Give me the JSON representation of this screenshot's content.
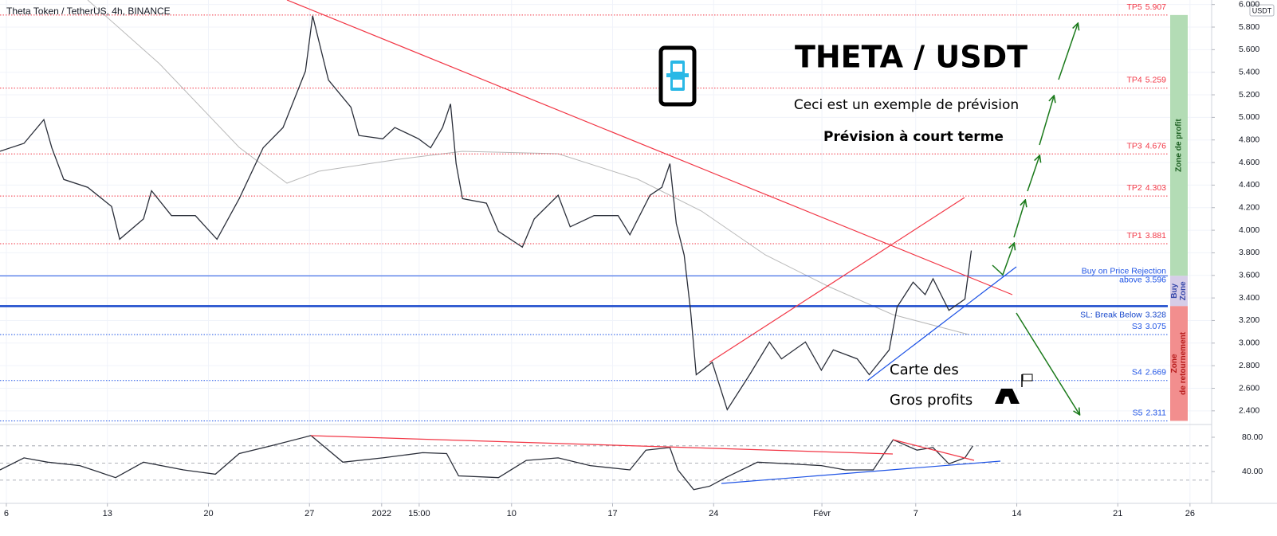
{
  "chart_data": {
    "type": "line",
    "title": "Theta Token / TetherUS, 4h, BINANCE",
    "y_axis_label": "USDT",
    "color": "#2a2e39",
    "x": [
      -0.44,
      1.22,
      2.6,
      3.15,
      3.98,
      5.64,
      7.29,
      7.85,
      9.5,
      10.06,
      11.44,
      13.09,
      14.59,
      16.13,
      17.79,
      19.17,
      20.72,
      21.22,
      22.32,
      23.87,
      24.42,
      26.08,
      26.91,
      28.56,
      29.39,
      30.22,
      30.77,
      31.16,
      31.6,
      33.26,
      34.09,
      35.75,
      36.57,
      38.23,
      39.06,
      40.72,
      42.38,
      43.2,
      44.59,
      45.41,
      45.97,
      46.41,
      46.96,
      47.4,
      47.79,
      48.9,
      49.94,
      51.49,
      52.87,
      53.7,
      55.36,
      56.46,
      57.29,
      58.95,
      59.78,
      61.16,
      61.71,
      62.82,
      63.65,
      64.2,
      65.3,
      66.41,
      66.85
    ],
    "values": [
      4.7,
      4.77,
      4.98,
      4.73,
      4.45,
      4.38,
      4.21,
      3.92,
      4.1,
      4.35,
      4.13,
      4.13,
      3.92,
      4.28,
      4.73,
      4.91,
      5.41,
      5.9,
      5.33,
      5.09,
      4.84,
      4.81,
      4.91,
      4.81,
      4.73,
      4.91,
      5.12,
      4.59,
      4.28,
      4.24,
      3.99,
      3.85,
      4.1,
      4.31,
      4.03,
      4.13,
      4.13,
      3.96,
      4.31,
      4.38,
      4.59,
      4.06,
      3.78,
      3.29,
      2.72,
      2.83,
      2.41,
      2.72,
      3.01,
      2.86,
      3.01,
      2.76,
      2.94,
      2.86,
      2.72,
      2.94,
      3.32,
      3.54,
      3.43,
      3.57,
      3.29,
      3.39,
      3.82
    ],
    "xlim": [
      -0.44,
      83.5
    ],
    "xticks": [
      {
        "value": 0,
        "label": "6"
      },
      {
        "value": 7,
        "label": "13"
      },
      {
        "value": 14,
        "label": "20"
      },
      {
        "value": 21,
        "label": "27"
      },
      {
        "value": 26,
        "label": "2022"
      },
      {
        "value": 28.6,
        "label": "15:00"
      },
      {
        "value": 35,
        "label": "10"
      },
      {
        "value": 42,
        "label": "17"
      },
      {
        "value": 49,
        "label": "24"
      },
      {
        "value": 56.5,
        "label": "Févr"
      },
      {
        "value": 63,
        "label": "7"
      },
      {
        "value": 70,
        "label": "14"
      },
      {
        "value": 77,
        "label": "21"
      },
      {
        "value": 82,
        "label": "26"
      }
    ],
    "ylim": [
      2.3,
      6.04
    ],
    "yticks": [
      {
        "value": 2.4,
        "label": "2.400"
      },
      {
        "value": 2.6,
        "label": "2.600"
      },
      {
        "value": 2.8,
        "label": "2.800"
      },
      {
        "value": 3.0,
        "label": "3.000"
      },
      {
        "value": 3.2,
        "label": "3.200"
      },
      {
        "value": 3.4,
        "label": "3.400"
      },
      {
        "value": 3.6,
        "label": "3.600"
      },
      {
        "value": 3.8,
        "label": "3.800"
      },
      {
        "value": 4.0,
        "label": "4.000"
      },
      {
        "value": 4.2,
        "label": "4.200"
      },
      {
        "value": 4.4,
        "label": "4.400"
      },
      {
        "value": 4.6,
        "label": "4.600"
      },
      {
        "value": 4.8,
        "label": "4.800"
      },
      {
        "value": 5.0,
        "label": "5.000"
      },
      {
        "value": 5.2,
        "label": "5.200"
      },
      {
        "value": 5.4,
        "label": "5.400"
      },
      {
        "value": 5.6,
        "label": "5.600"
      },
      {
        "value": 5.8,
        "label": "5.800"
      },
      {
        "value": 6.0,
        "label": "6.000"
      }
    ],
    "grid": true,
    "levels": [
      {
        "name": "TP5",
        "value": 5.907,
        "color": "#f23645",
        "style": "dotted",
        "width": 1
      },
      {
        "name": "TP4",
        "value": 5.259,
        "color": "#f23645",
        "style": "dotted",
        "width": 1
      },
      {
        "name": "TP3",
        "value": 4.676,
        "color": "#f23645",
        "style": "dotted",
        "width": 1
      },
      {
        "name": "TP2",
        "value": 4.303,
        "color": "#f23645",
        "style": "dotted",
        "width": 1
      },
      {
        "name": "TP1",
        "value": 3.881,
        "color": "#f23645",
        "style": "dotted",
        "width": 1
      },
      {
        "name": "Buy on Price Rejection",
        "prefix": "above",
        "value": 3.596,
        "color": "#1e53e5",
        "style": "solid",
        "width": 1
      },
      {
        "name": "SL: Break Below",
        "value": 3.328,
        "color": "#1848cc",
        "style": "solid",
        "width": 2.5,
        "label_position": "below"
      },
      {
        "name": "S3",
        "value": 3.075,
        "color": "#1e53e5",
        "style": "dotted",
        "width": 1
      },
      {
        "name": "S4",
        "value": 2.669,
        "color": "#1e53e5",
        "style": "dotted",
        "width": 1
      },
      {
        "name": "S5",
        "value": 2.311,
        "color": "#1e53e5",
        "style": "dotted",
        "width": 1
      }
    ],
    "zones": [
      {
        "lines": [
          "Zone de profit"
        ],
        "color": "#b3dcb5",
        "text_color": "#1b5e20"
      },
      {
        "lines": [
          "Buy",
          "Zone"
        ],
        "color": "#d6cde8",
        "text_color": "#3949ab"
      },
      {
        "lines": [
          "Zone",
          "de retournement"
        ],
        "color": "#f28e8e",
        "text_color": "#b71c1c"
      }
    ],
    "annotations": {
      "heading": "THETA / USDT",
      "line1": "Ceci est un exemple de prévision",
      "line2": "Prévision à court terme",
      "map1": "Carte des",
      "map2": "Gros profits"
    },
    "rsi": {
      "color": "#2a2e39",
      "x": [
        -0.44,
        1.22,
        2.87,
        5.08,
        7.57,
        9.5,
        12.27,
        14.48,
        16.13,
        18.34,
        21.1,
        23.31,
        26.08,
        28.84,
        30.5,
        31.33,
        34.09,
        36.02,
        38.23,
        40.44,
        43.2,
        44.31,
        45.97,
        46.52,
        47.62,
        48.73,
        49.83,
        52.04,
        54.25,
        56.46,
        58.12,
        60.06,
        61.44,
        63.09,
        64.2,
        65.3,
        66.41,
        66.96
      ],
      "values": [
        42,
        56,
        51,
        47,
        33,
        51,
        42,
        37,
        61,
        70,
        82,
        51,
        56,
        62,
        61,
        35,
        33,
        53,
        56,
        47,
        42,
        65,
        68,
        42,
        19,
        23,
        33,
        51,
        49,
        47,
        42,
        42,
        77,
        65,
        68,
        49,
        56,
        70
      ],
      "ylim": [
        3,
        93
      ],
      "yticks": [
        {
          "value": 80,
          "label": "80.00"
        },
        {
          "value": 40,
          "label": "40.00"
        }
      ],
      "bands": [
        70,
        50,
        30
      ]
    }
  }
}
